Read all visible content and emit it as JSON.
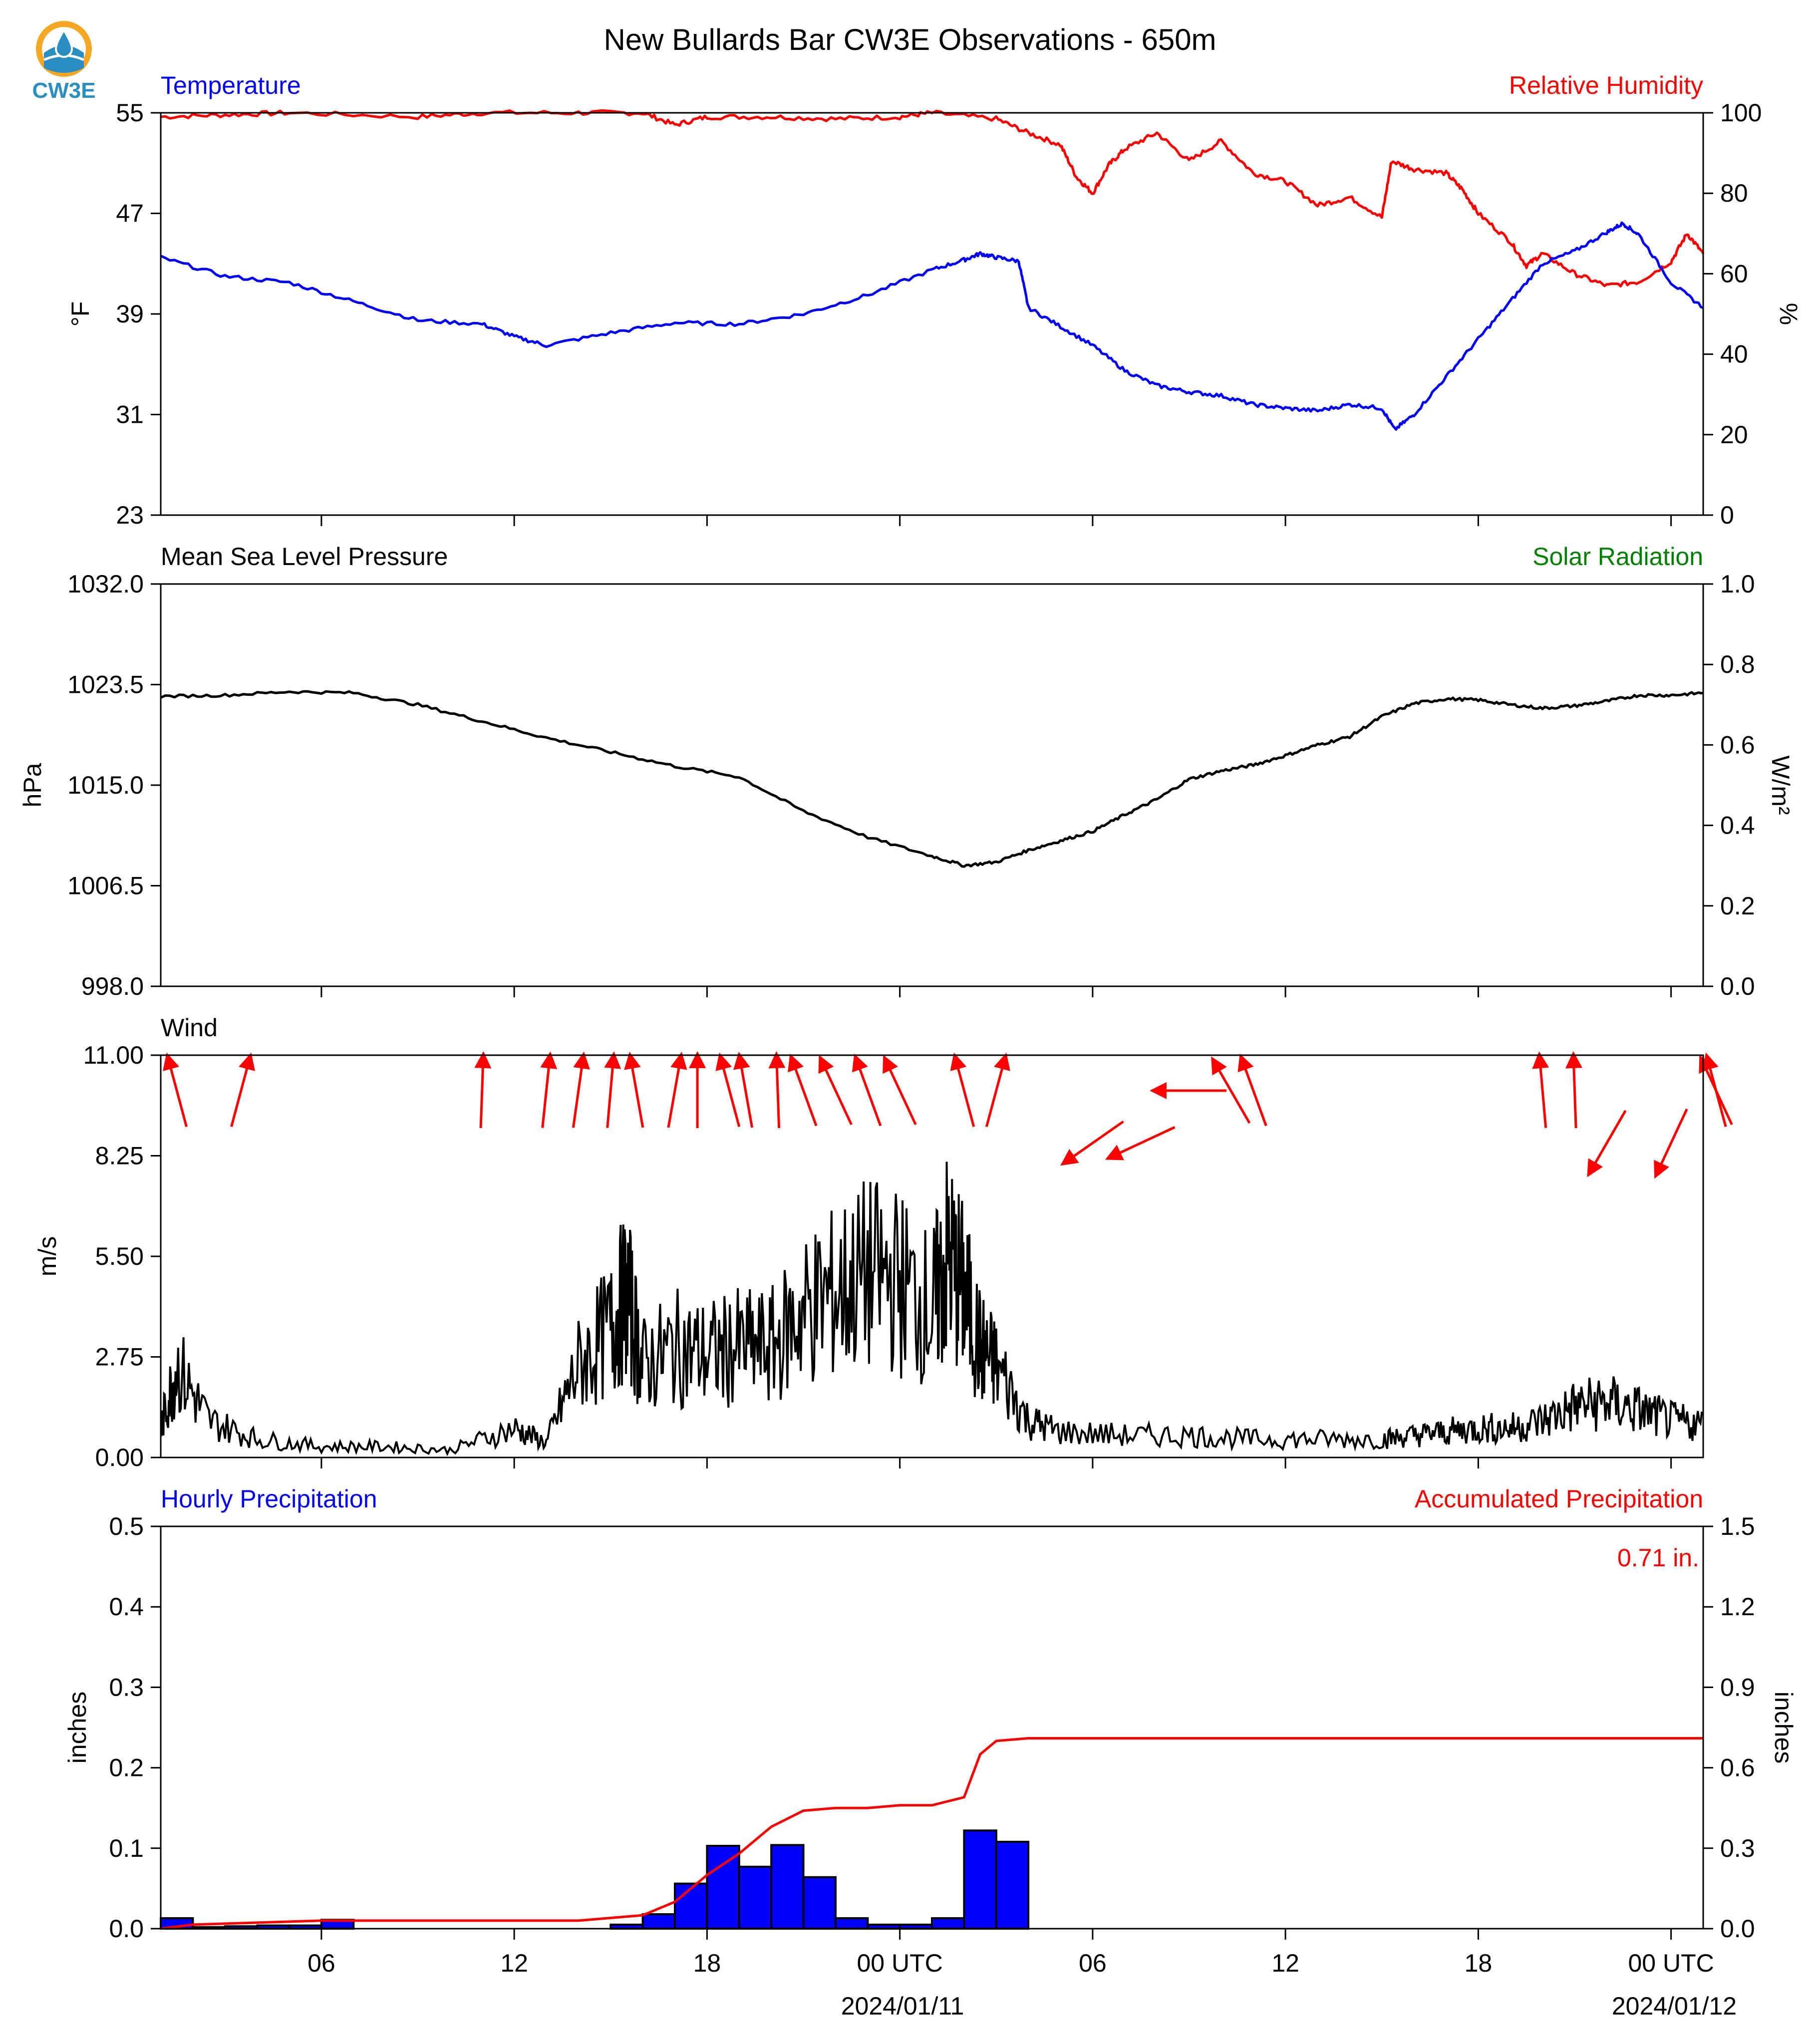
{
  "title": "New Bullards Bar CW3E Observations - 650m",
  "logo": {
    "text": "CW3E",
    "icon": "cw3e-droplet-logo-icon",
    "color": "#2a8fc0",
    "accent": "#f5a623"
  },
  "colors": {
    "blue": "#0000ff",
    "red": "#ff0000",
    "black": "#000000",
    "green": "#008000"
  },
  "time_axis": {
    "tick_labels": [
      "06",
      "12",
      "18",
      "00 UTC",
      "06",
      "12",
      "18",
      "00 UTC"
    ],
    "date_labels": [
      "2024/01/11",
      "2024/01/12"
    ],
    "range_hours": [
      -23,
      25
    ]
  },
  "panels": {
    "temp": {
      "left_title": "Temperature",
      "right_title": "Relative Humidity",
      "left_unit": "°F",
      "right_unit": "%",
      "left_ticks": [
        "55",
        "47",
        "39",
        "31",
        "23"
      ],
      "right_ticks": [
        "100",
        "80",
        "60",
        "40",
        "20",
        "0"
      ]
    },
    "pressure": {
      "left_title": "Mean Sea Level Pressure",
      "right_title": "Solar Radiation",
      "left_unit": "hPa",
      "right_unit": "W/m²",
      "left_ticks": [
        "1032.0",
        "1023.5",
        "1015.0",
        "1006.5",
        "998.0"
      ],
      "right_ticks": [
        "1.0",
        "0.8",
        "0.6",
        "0.4",
        "0.2",
        "0.0"
      ]
    },
    "wind": {
      "left_title": "Wind",
      "left_unit": "m/s",
      "left_ticks": [
        "11.00",
        "8.25",
        "5.50",
        "2.75",
        "0.00"
      ]
    },
    "precip": {
      "left_title": "Hourly Precipitation",
      "right_title": "Accumulated Precipitation",
      "left_unit": "inches",
      "right_unit": "inches",
      "left_ticks": [
        "0.5",
        "0.4",
        "0.3",
        "0.2",
        "0.1",
        "0.0"
      ],
      "right_ticks": [
        "1.5",
        "1.2",
        "0.9",
        "0.6",
        "0.3",
        "0.0"
      ],
      "total_label": "0.71 in."
    }
  },
  "chart_data": [
    {
      "type": "line",
      "xunit": "hours relative to 2024-01-11 00 UTC",
      "xlim": [
        -23,
        25
      ],
      "series": [
        {
          "name": "Temperature",
          "axis": "left",
          "color": "#0000ff",
          "x": [
            -23,
            -21,
            -19,
            -17,
            -15,
            -13,
            -12,
            -11,
            -9,
            -7,
            -5,
            -3,
            -1,
            1,
            2,
            2.5,
            3,
            3.7,
            4,
            5,
            6,
            7,
            8,
            9,
            10,
            11,
            12,
            13,
            14,
            15,
            15.4,
            16,
            17,
            18,
            19,
            20,
            21,
            22,
            22.5,
            23,
            24,
            25
          ],
          "y": [
            43.5,
            42,
            41.5,
            40,
            38.5,
            38.2,
            37.2,
            36.5,
            37.5,
            38.3,
            38.2,
            39,
            40.5,
            42.5,
            43.3,
            43.8,
            43.5,
            43.2,
            39.5,
            38,
            36.5,
            34.5,
            33.3,
            32.8,
            32.5,
            31.8,
            31.5,
            31.3,
            31.8,
            31.5,
            29.8,
            31,
            34,
            37,
            40,
            43,
            44,
            45.5,
            46.2,
            45.3,
            41.5,
            39.5
          ]
        },
        {
          "name": "Relative Humidity",
          "axis": "right",
          "color": "#ff0000",
          "x": [
            -23,
            -21,
            -19,
            -15,
            -13,
            -10,
            -8,
            -7,
            -6,
            -4,
            -2,
            0,
            1,
            3,
            4,
            5,
            5.5,
            6,
            6.5,
            7,
            8,
            9,
            10,
            11,
            12,
            13,
            14,
            15,
            15.3,
            16,
            17,
            17.5,
            18,
            19,
            19.5,
            20,
            21,
            22,
            23,
            24,
            24.5,
            25
          ],
          "y": [
            99,
            99.5,
            100,
            99,
            100,
            100,
            100,
            97,
            99,
            99,
            98.5,
            99,
            100,
            98.5,
            95,
            92,
            84,
            80,
            87,
            91,
            95,
            88,
            93,
            85,
            83,
            77,
            79,
            74,
            88,
            86,
            85,
            81,
            75,
            68,
            62,
            65,
            60,
            57,
            58,
            63,
            70,
            65
          ]
        },
        {
          "name": "Mean Sea Level Pressure",
          "axis": "left",
          "color": "#000000",
          "x": [
            -23,
            -21,
            -19,
            -17,
            -15,
            -13,
            -11,
            -9,
            -7,
            -5,
            -3,
            -1,
            1,
            2,
            3,
            4,
            5,
            6,
            7,
            8,
            9,
            10,
            11,
            12,
            13,
            14,
            15,
            16,
            17,
            18,
            19,
            20,
            21,
            22,
            23,
            24,
            25
          ],
          "y": [
            1022.5,
            1022.6,
            1022.9,
            1022.8,
            1021.8,
            1020.4,
            1019.0,
            1017.8,
            1016.6,
            1015.7,
            1012.8,
            1010.6,
            1009.0,
            1008.2,
            1008.5,
            1009.5,
            1010.3,
            1011.1,
            1012.5,
            1013.8,
            1015.5,
            1016.2,
            1016.7,
            1017.5,
            1018.4,
            1019.1,
            1020.8,
            1021.9,
            1022.3,
            1022.2,
            1021.8,
            1021.5,
            1021.7,
            1022.1,
            1022.6,
            1022.6,
            1022.8
          ]
        },
        {
          "name": "Wind",
          "axis": "left",
          "color": "#000000",
          "x": [
            -23,
            -22.5,
            -21.5,
            -20,
            -18,
            -16,
            -14,
            -12,
            -11,
            -10,
            -9,
            -8.5,
            -8,
            -7,
            -6,
            -5,
            -4,
            -3,
            -2,
            -1,
            0,
            1,
            1.5,
            2,
            2.5,
            3,
            4,
            5,
            7,
            9,
            11,
            13,
            15,
            16,
            17,
            18,
            19,
            20,
            21,
            22,
            23,
            24,
            25
          ],
          "y": [
            0.8,
            2.5,
            1,
            0.5,
            0.3,
            0.3,
            0.2,
            0.8,
            0.4,
            2.5,
            3.5,
            4.5,
            2.5,
            3,
            2.8,
            3,
            3,
            4,
            4.5,
            5,
            4.8,
            4,
            5.5,
            4.5,
            3,
            2.5,
            1,
            0.7,
            0.6,
            0.6,
            0.5,
            0.5,
            0.5,
            0.6,
            0.7,
            0.8,
            0.8,
            1,
            1.4,
            1.5,
            1.3,
            1,
            0.9
          ]
        }
      ]
    },
    {
      "type": "bar",
      "name": "Hourly Precipitation",
      "xunit": "hours relative to 2024-01-11 00 UTC (bar start)",
      "x": [
        -23,
        -22,
        -21,
        -20,
        -19,
        -18,
        -9,
        -8,
        -7,
        -6,
        -5,
        -4,
        -3,
        -2,
        -1,
        0,
        1,
        2,
        3
      ],
      "values": [
        0.013,
        0.002,
        0.003,
        0.004,
        0.004,
        0.011,
        0.005,
        0.018,
        0.056,
        0.103,
        0.077,
        0.104,
        0.064,
        0.013,
        0.005,
        0.005,
        0.013,
        0.122,
        0.108
      ],
      "ylim": [
        0,
        0.5
      ],
      "accumulated": {
        "name": "Accumulated Precipitation",
        "x": [
          -23,
          -22,
          -18,
          -10,
          -8,
          -7,
          -6,
          -5,
          -4,
          -3,
          -2,
          -1,
          0,
          1,
          2,
          2.5,
          3,
          4,
          25
        ],
        "y": [
          0.0,
          0.015,
          0.03,
          0.03,
          0.05,
          0.1,
          0.2,
          0.28,
          0.38,
          0.44,
          0.45,
          0.45,
          0.46,
          0.46,
          0.49,
          0.65,
          0.7,
          0.71,
          0.71
        ],
        "ylim": [
          0,
          1.5
        ]
      }
    },
    {
      "type": "vector",
      "name": "Wind direction",
      "xunit": "hours relative to 2024-01-11 00 UTC",
      "x": [
        -22.5,
        -20.5,
        -13,
        -11,
        -10,
        -9,
        -8.2,
        -7,
        -6.3,
        -5.3,
        -4.8,
        -3.8,
        -3,
        -2,
        -1,
        0,
        2,
        3,
        6,
        7.5,
        9,
        10.3,
        11,
        20,
        21,
        22,
        24,
        25.5,
        26.5
      ],
      "direction_deg": [
        345,
        15,
        2,
        6,
        8,
        5,
        350,
        10,
        0,
        345,
        350,
        358,
        340,
        335,
        340,
        335,
        345,
        15,
        235,
        245,
        270,
        330,
        340,
        355,
        358,
        210,
        205,
        345,
        335
      ]
    }
  ]
}
